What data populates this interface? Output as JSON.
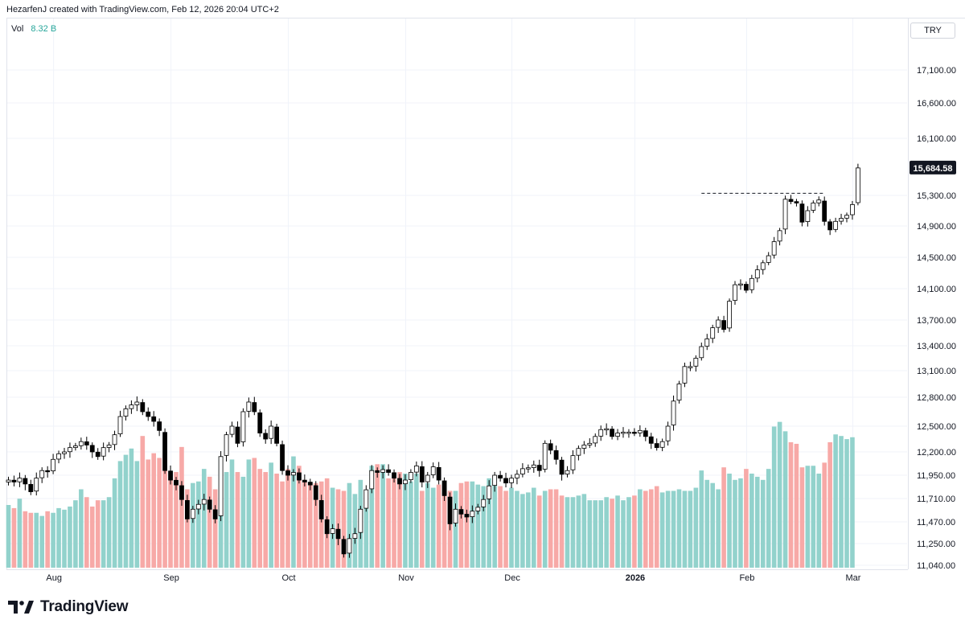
{
  "header": {
    "text": "HezarfenJ created with TradingView.com, Feb 12, 2026 20:04 UTC+2"
  },
  "volume_legend": {
    "label": "Vol",
    "value": "8.32 B"
  },
  "currency": "TRY",
  "last_price_label": "15,684.58",
  "brand": "TradingView",
  "colors": {
    "up_volume": "#92d2cc",
    "down_volume": "#f7a9a7",
    "candle_up_fill": "#ffffff",
    "candle_down_fill": "#000000",
    "wick": "#000000",
    "grid": "#f0f3fa",
    "accent_teal": "#26a69a"
  },
  "chart_data": {
    "type": "candlestick",
    "title": "",
    "symbol_currency": "TRY",
    "last_price": 15684.58,
    "resistance_level": 15330,
    "ylim": [
      11000,
      17600
    ],
    "y_ticks": [
      17100,
      16600,
      16100,
      15300,
      14900,
      14500,
      14100,
      13700,
      13400,
      13100,
      12800,
      12500,
      12200,
      11950,
      11710,
      11470,
      11250,
      11040
    ],
    "y_tick_labels": [
      "17,100.00",
      "16,600.00",
      "16,100.00",
      "15,300.00",
      "14,900.00",
      "14,500.00",
      "14,100.00",
      "13,700.00",
      "13,400.00",
      "13,100.00",
      "12,800.00",
      "12,500.00",
      "12,200.00",
      "11,950.00",
      "11,710.00",
      "11,470.00",
      "11,250.00",
      "11,040.00"
    ],
    "x_month_labels": [
      {
        "label": "Aug",
        "index": 7
      },
      {
        "label": "Sep",
        "index": 28
      },
      {
        "label": "Oct",
        "index": 49
      },
      {
        "label": "Nov",
        "index": 70
      },
      {
        "label": "Dec",
        "index": 89
      },
      {
        "label": "2026",
        "index": 111
      },
      {
        "label": "Feb",
        "index": 131
      },
      {
        "label": "Mar",
        "index": 150
      }
    ],
    "volume_label": "Vol",
    "volume_total": "8.32 B",
    "closes": [
      11900,
      11880,
      11920,
      11860,
      11780,
      11920,
      12000,
      11990,
      12120,
      12180,
      12200,
      12250,
      12270,
      12320,
      12280,
      12200,
      12150,
      12250,
      12280,
      12400,
      12600,
      12680,
      12720,
      12750,
      12650,
      12600,
      12550,
      12450,
      12000,
      11900,
      11850,
      11700,
      11500,
      11600,
      11650,
      11700,
      11600,
      11500,
      12150,
      12400,
      12500,
      12300,
      12650,
      12750,
      12650,
      12420,
      12350,
      12500,
      12300,
      12000,
      11950,
      11980,
      11900,
      11880,
      11850,
      11700,
      11500,
      11350,
      11400,
      11300,
      11150,
      11300,
      11350,
      11600,
      11800,
      12000,
      11980,
      12010,
      11980,
      11920,
      11860,
      11900,
      11980,
      12050,
      11880,
      11950,
      12040,
      11900,
      11740,
      11450,
      11600,
      11550,
      11520,
      11580,
      11620,
      11700,
      11840,
      11950,
      11920,
      11870,
      11920,
      11960,
      12020,
      12030,
      12060,
      12000,
      12300,
      12220,
      12120,
      11960,
      12000,
      12160,
      12240,
      12280,
      12300,
      12380,
      12460,
      12470,
      12380,
      12420,
      12430,
      12430,
      12420,
      12450,
      12380,
      12300,
      12250,
      12320,
      12500,
      12760,
      12950,
      13150,
      13150,
      13250,
      13390,
      13480,
      13610,
      13700,
      13590,
      13940,
      14150,
      14160,
      14080,
      14230,
      14340,
      14430,
      14520,
      14700,
      14840,
      15250,
      15220,
      15200,
      14950,
      15100,
      15200,
      15240,
      14960,
      14850,
      14960,
      15000,
      15040,
      15180,
      15684.58
    ],
    "volumes_billion": [
      4.0,
      3.8,
      4.4,
      3.6,
      3.5,
      3.5,
      3.3,
      3.6,
      3.5,
      3.8,
      3.7,
      3.9,
      4.3,
      5.0,
      4.5,
      3.9,
      4.3,
      4.3,
      4.5,
      5.7,
      6.8,
      7.2,
      7.6,
      6.8,
      8.4,
      6.9,
      7.3,
      7.0,
      7.3,
      5.7,
      6.1,
      7.7,
      5.0,
      5.4,
      5.5,
      6.3,
      5.8,
      5.0,
      7.1,
      6.1,
      6.9,
      6.1,
      5.8,
      6.9,
      7.0,
      6.3,
      6.1,
      6.7,
      6.0,
      5.5,
      6.3,
      7.1,
      6.5,
      5.6,
      5.3,
      5.4,
      5.5,
      5.7,
      5.1,
      5.0,
      4.9,
      5.4,
      4.7,
      5.6,
      4.8,
      6.5,
      6.6,
      6.6,
      5.7,
      5.9,
      6.1,
      6.0,
      5.5,
      6.0,
      4.9,
      5.4,
      5.1,
      5.3,
      4.8,
      4.9,
      4.9,
      5.4,
      5.5,
      5.5,
      5.3,
      5.2,
      5.7,
      5.5,
      5.2,
      4.9,
      5.1,
      4.9,
      4.7,
      4.8,
      5.1,
      4.6,
      4.9,
      5.0,
      5.0,
      4.6,
      4.5,
      4.5,
      4.6,
      4.7,
      4.3,
      4.3,
      4.3,
      4.5,
      4.4,
      4.6,
      4.3,
      4.5,
      4.6,
      5.0,
      4.9,
      5.0,
      5.2,
      4.8,
      4.9,
      4.9,
      5.0,
      4.9,
      4.9,
      5.1,
      6.2,
      5.6,
      5.4,
      5.0,
      6.4,
      6.0,
      5.6,
      5.7,
      6.3,
      6.0,
      5.8,
      5.6,
      6.3,
      9.0,
      9.3,
      8.7,
      8.0,
      7.9,
      6.4,
      6.5,
      6.5,
      6.0,
      6.7,
      8.0,
      8.5,
      8.4,
      8.2,
      8.32
    ]
  }
}
